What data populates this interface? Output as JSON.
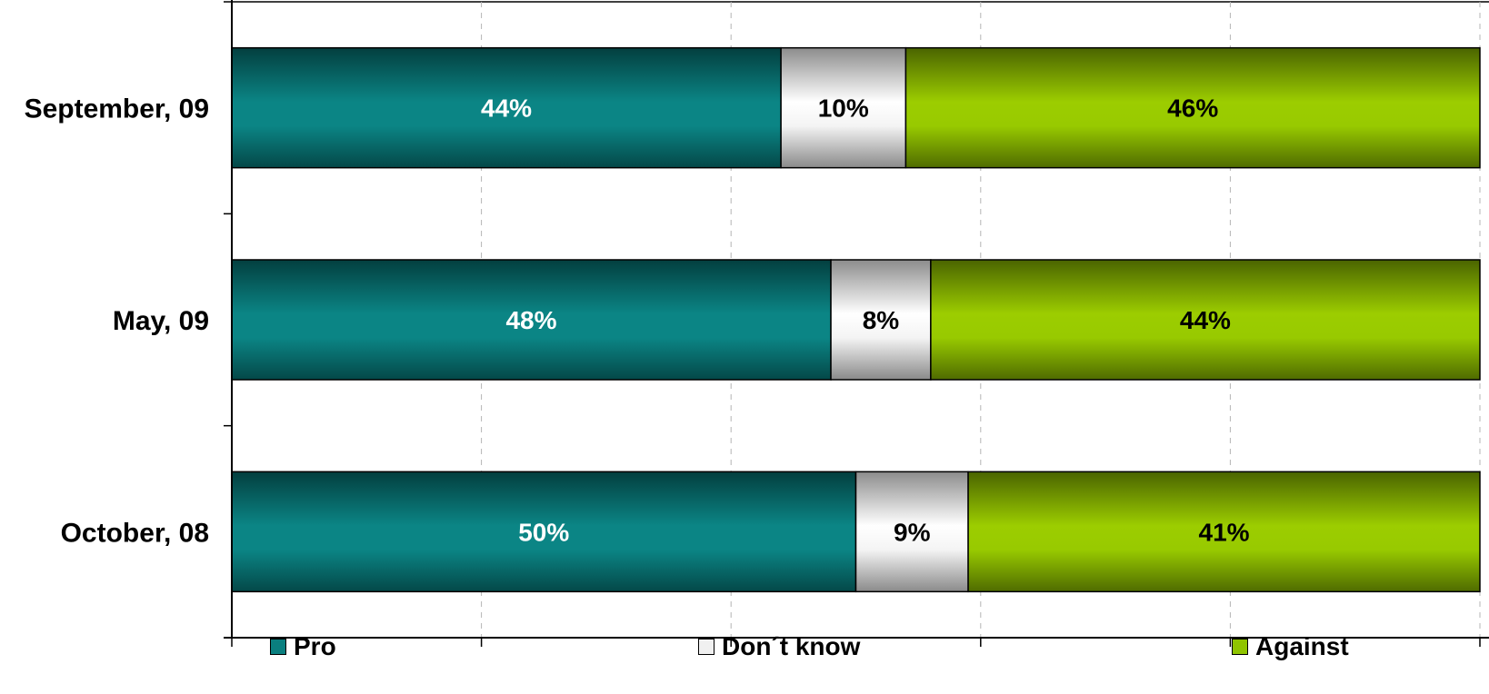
{
  "chart_data": {
    "type": "bar",
    "orientation": "horizontal",
    "stacked": true,
    "categories": [
      "September, 09",
      "May, 09",
      "October, 08"
    ],
    "series": [
      {
        "name": "Pro",
        "values": [
          44,
          48,
          50
        ],
        "labels": [
          "44%",
          "48%",
          "50%"
        ],
        "color": "#0a7f7f",
        "label_color": "#ffffff"
      },
      {
        "name": "Don´t know",
        "values": [
          10,
          8,
          9
        ],
        "labels": [
          "10%",
          "8%",
          "9%"
        ],
        "color": "#e6e6e6",
        "label_color": "#000000"
      },
      {
        "name": "Against",
        "values": [
          46,
          44,
          41
        ],
        "labels": [
          "46%",
          "44%",
          "41%"
        ],
        "color": "#8fc400",
        "label_color": "#000000"
      }
    ],
    "xlim": [
      0,
      100
    ],
    "grid": "vertical dashed",
    "legend_position": "bottom"
  }
}
